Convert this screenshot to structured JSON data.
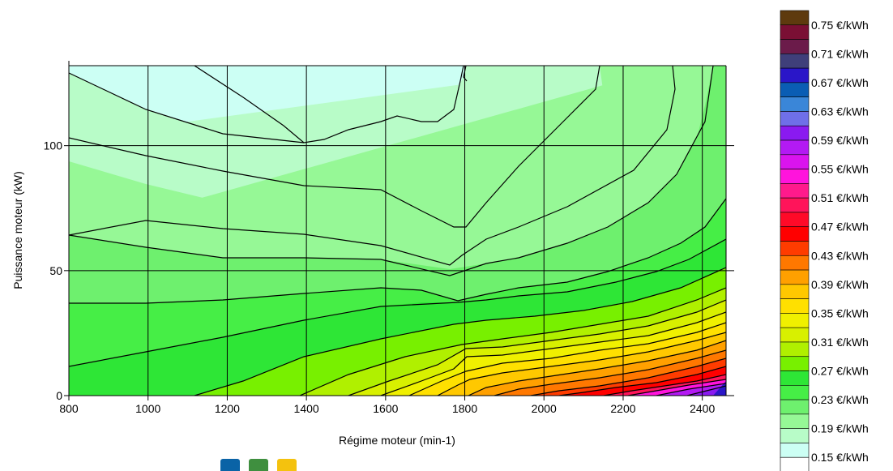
{
  "chart_data": {
    "type": "heatmap",
    "title": "",
    "xlabel": "Régime moteur (min-1)",
    "ylabel": "Puissance moteur (kW)",
    "xlim": [
      800,
      2460
    ],
    "ylim": [
      0,
      132
    ],
    "x_ticks": [
      800,
      1000,
      1200,
      1400,
      1600,
      1800,
      2000,
      2200,
      2400
    ],
    "y_ticks": [
      0,
      50,
      100
    ],
    "grid": true,
    "legend_position": "right",
    "legend_unit": "€/kWh",
    "levels": [
      0.15,
      0.17,
      0.19,
      0.21,
      0.23,
      0.25,
      0.27,
      0.29,
      0.31,
      0.33,
      0.35,
      0.37,
      0.39,
      0.41,
      0.43,
      0.45,
      0.47,
      0.49,
      0.51,
      0.53,
      0.55,
      0.57,
      0.59,
      0.61,
      0.63,
      0.65,
      0.67,
      0.69,
      0.71,
      0.73,
      0.75,
      0.77
    ],
    "legend_labels": [
      "0.75 €/kWh",
      "0.71 €/kWh",
      "0.67 €/kWh",
      "0.63 €/kWh",
      "0.59 €/kWh",
      "0.55 €/kWh",
      "0.51 €/kWh",
      "0.47 €/kWh",
      "0.43 €/kWh",
      "0.39 €/kWh",
      "0.35 €/kWh",
      "0.31 €/kWh",
      "0.27 €/kWh",
      "0.23 €/kWh",
      "0.19 €/kWh",
      "0.15 €/kWh"
    ],
    "legend_colors": [
      "#5e3a0e",
      "#7a0f34",
      "#6b1b4a",
      "#3f3f7a",
      "#2a16c8",
      "#0a5db4",
      "#3a86d8",
      "#6f6fe8",
      "#8a1af0",
      "#b31af3",
      "#da14ee",
      "#ff14dc",
      "#ff1a8c",
      "#ff145a",
      "#ff0a28",
      "#ff0000",
      "#ff3c00",
      "#ff7800",
      "#ffa000",
      "#ffc800",
      "#ffe000",
      "#f0f000",
      "#d8f000",
      "#b0f000",
      "#78f000",
      "#2ee636",
      "#46ee46",
      "#6ef06e",
      "#96f896",
      "#b8fcc8",
      "#ccfff4",
      "#ffffff"
    ],
    "contour_samples_kW": [
      {
        "x": 800,
        "levels_kW": [
          11,
          37,
          64,
          93,
          128
        ]
      },
      {
        "x": 1000,
        "levels_kW": [
          15,
          37,
          58,
          83,
          110
        ]
      },
      {
        "x": 1200,
        "levels_kW": [
          20,
          38,
          54,
          76,
          96
        ]
      },
      {
        "x": 1400,
        "levels_kW": [
          26,
          39,
          53,
          72,
          84,
          100
        ]
      },
      {
        "x": 1600,
        "levels_kW": [
          31,
          42,
          49,
          63,
          76,
          83,
          112
        ]
      },
      {
        "x": 1780,
        "levels_kW": [
          29,
          38,
          42,
          51,
          67,
          108
        ]
      },
      {
        "x": 2000,
        "levels_kW": [
          18,
          26,
          32,
          38,
          45,
          53,
          76,
          132
        ]
      },
      {
        "x": 2200,
        "levels_kW": [
          16,
          24,
          30,
          36,
          41,
          45,
          51,
          58,
          67,
          96,
          132
        ]
      },
      {
        "x": 2400,
        "levels_kW": [
          10,
          17,
          24,
          29,
          34,
          39,
          45,
          50,
          57,
          65,
          80,
          90,
          117,
          132
        ]
      }
    ]
  },
  "colors": {
    "frame": "#000000",
    "background": "#ffffff",
    "legend_mini_icons": [
      "#0a63a6",
      "#3f8f3f",
      "#f4c20e"
    ]
  }
}
